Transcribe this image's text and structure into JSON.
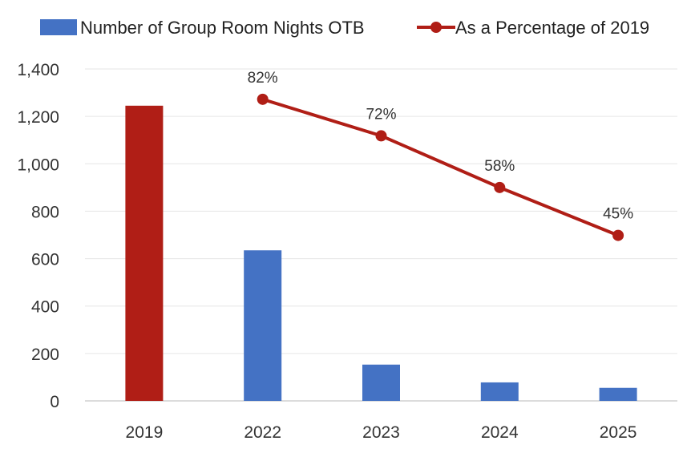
{
  "chart_data": {
    "type": "bar",
    "title": "",
    "xlabel": "",
    "ylabel": "",
    "categories": [
      "2019",
      "2022",
      "2023",
      "2024",
      "2025"
    ],
    "ylim": [
      0,
      1400
    ],
    "yticks": [
      0,
      200,
      400,
      600,
      800,
      1000,
      1200,
      1400
    ],
    "ytick_labels": [
      "0",
      "200",
      "400",
      "600",
      "800",
      "1,000",
      "1,200",
      "1,400"
    ],
    "grid": true,
    "legend_position": "top",
    "series": [
      {
        "name": "Number of Group Room Nights OTB",
        "type": "bar",
        "color": "#4472C4",
        "highlight_color": "#B01E16",
        "highlight_category": "2019",
        "values": [
          1245,
          635,
          153,
          78,
          55
        ]
      },
      {
        "name": "As a Percentage of 2019",
        "type": "line",
        "color": "#B01E16",
        "categories": [
          "2022",
          "2023",
          "2024",
          "2025"
        ],
        "plot_values": [
          1272,
          1118,
          900,
          698
        ],
        "labels": [
          "82%",
          "72%",
          "58%",
          "45%"
        ]
      }
    ]
  }
}
